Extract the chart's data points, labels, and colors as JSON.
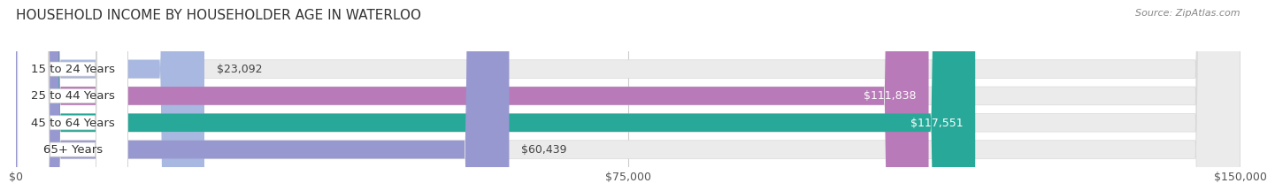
{
  "title": "HOUSEHOLD INCOME BY HOUSEHOLDER AGE IN WATERLOO",
  "source": "Source: ZipAtlas.com",
  "categories": [
    "15 to 24 Years",
    "25 to 44 Years",
    "45 to 64 Years",
    "65+ Years"
  ],
  "values": [
    23092,
    111838,
    117551,
    60439
  ],
  "bar_colors": [
    "#a8b8e0",
    "#b87ab8",
    "#28a898",
    "#9898d0"
  ],
  "label_texts": [
    "$23,092",
    "$111,838",
    "$117,551",
    "$60,439"
  ],
  "x_ticks": [
    0,
    75000,
    150000
  ],
  "x_tick_labels": [
    "$0",
    "$75,000",
    "$150,000"
  ],
  "xlim": [
    0,
    150000
  ],
  "bg_color": "#ffffff",
  "bar_bg_color": "#ebebeb",
  "title_fontsize": 11,
  "tick_fontsize": 9,
  "category_fontsize": 9.5,
  "source_fontsize": 8,
  "value_label_fontsize": 9
}
